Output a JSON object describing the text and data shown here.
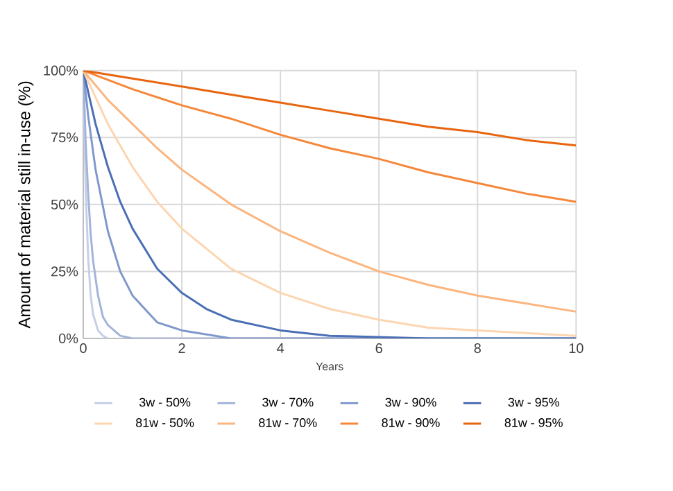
{
  "chart_data": {
    "type": "line",
    "xlabel": "Years",
    "ylabel": "Amount of material still in-use (%)",
    "xlim": [
      0,
      10
    ],
    "xticks": [
      0,
      2,
      4,
      6,
      8,
      10
    ],
    "ylim": [
      0,
      100
    ],
    "yticks": [
      {
        "value": 0,
        "label": "0%"
      },
      {
        "value": 25,
        "label": "25%"
      },
      {
        "value": 50,
        "label": "50%"
      },
      {
        "value": 75,
        "label": "75%"
      },
      {
        "value": 100,
        "label": "100%"
      }
    ],
    "grid": true,
    "legend": "bottom",
    "marker": "none",
    "line_style": "solid",
    "series": [
      {
        "name": "3w - 50%",
        "color": "#c5d0e6",
        "x": [
          0,
          0.05,
          0.1,
          0.15,
          0.2,
          0.3,
          0.4,
          0.5
        ],
        "values": [
          100,
          55,
          30,
          16,
          9,
          3,
          1,
          0
        ]
      },
      {
        "name": "3w - 70%",
        "color": "#a3b4da",
        "x": [
          0,
          0.05,
          0.1,
          0.15,
          0.2,
          0.3,
          0.4,
          0.5,
          0.75,
          1,
          10
        ],
        "values": [
          100,
          73,
          54,
          39,
          29,
          16,
          8,
          5,
          1,
          0,
          0
        ]
      },
      {
        "name": "3w - 90%",
        "color": "#7f98cc",
        "x": [
          0,
          0.1,
          0.25,
          0.5,
          0.75,
          1,
          1.5,
          2,
          3,
          10
        ],
        "values": [
          100,
          83,
          63,
          40,
          25,
          16,
          6,
          3,
          0,
          0
        ]
      },
      {
        "name": "3w - 95%",
        "color": "#4a6fb5",
        "x": [
          0,
          0.25,
          0.5,
          0.75,
          1,
          1.5,
          2,
          2.5,
          3,
          4,
          5,
          7,
          10
        ],
        "values": [
          100,
          80,
          64,
          51,
          41,
          26,
          17,
          11,
          7,
          3,
          1,
          0,
          0
        ]
      },
      {
        "name": "81w - 50%",
        "color": "#fdd5b1",
        "x": [
          0,
          0.5,
          1,
          1.5,
          2,
          3,
          4,
          5,
          6,
          7,
          8,
          9,
          10
        ],
        "values": [
          100,
          80,
          64,
          51,
          41,
          26,
          17,
          11,
          7,
          4,
          3,
          2,
          1
        ]
      },
      {
        "name": "81w - 70%",
        "color": "#fbb57f",
        "x": [
          0,
          0.5,
          1,
          1.5,
          2,
          3,
          4,
          5,
          6,
          7,
          8,
          9,
          10
        ],
        "values": [
          100,
          89,
          80,
          71,
          63,
          50,
          40,
          32,
          25,
          20,
          16,
          13,
          10
        ]
      },
      {
        "name": "81w - 90%",
        "color": "#f5873a",
        "x": [
          0,
          1,
          2,
          3,
          4,
          5,
          6,
          7,
          8,
          9,
          10
        ],
        "values": [
          100,
          93,
          87,
          82,
          76,
          71,
          67,
          62,
          58,
          54,
          51
        ]
      },
      {
        "name": "81w - 95%",
        "color": "#e8650f",
        "x": [
          0,
          1,
          2,
          3,
          4,
          5,
          6,
          7,
          8,
          9,
          10
        ],
        "values": [
          100,
          97,
          94,
          91,
          88,
          85,
          82,
          79,
          77,
          74,
          72
        ]
      }
    ]
  }
}
